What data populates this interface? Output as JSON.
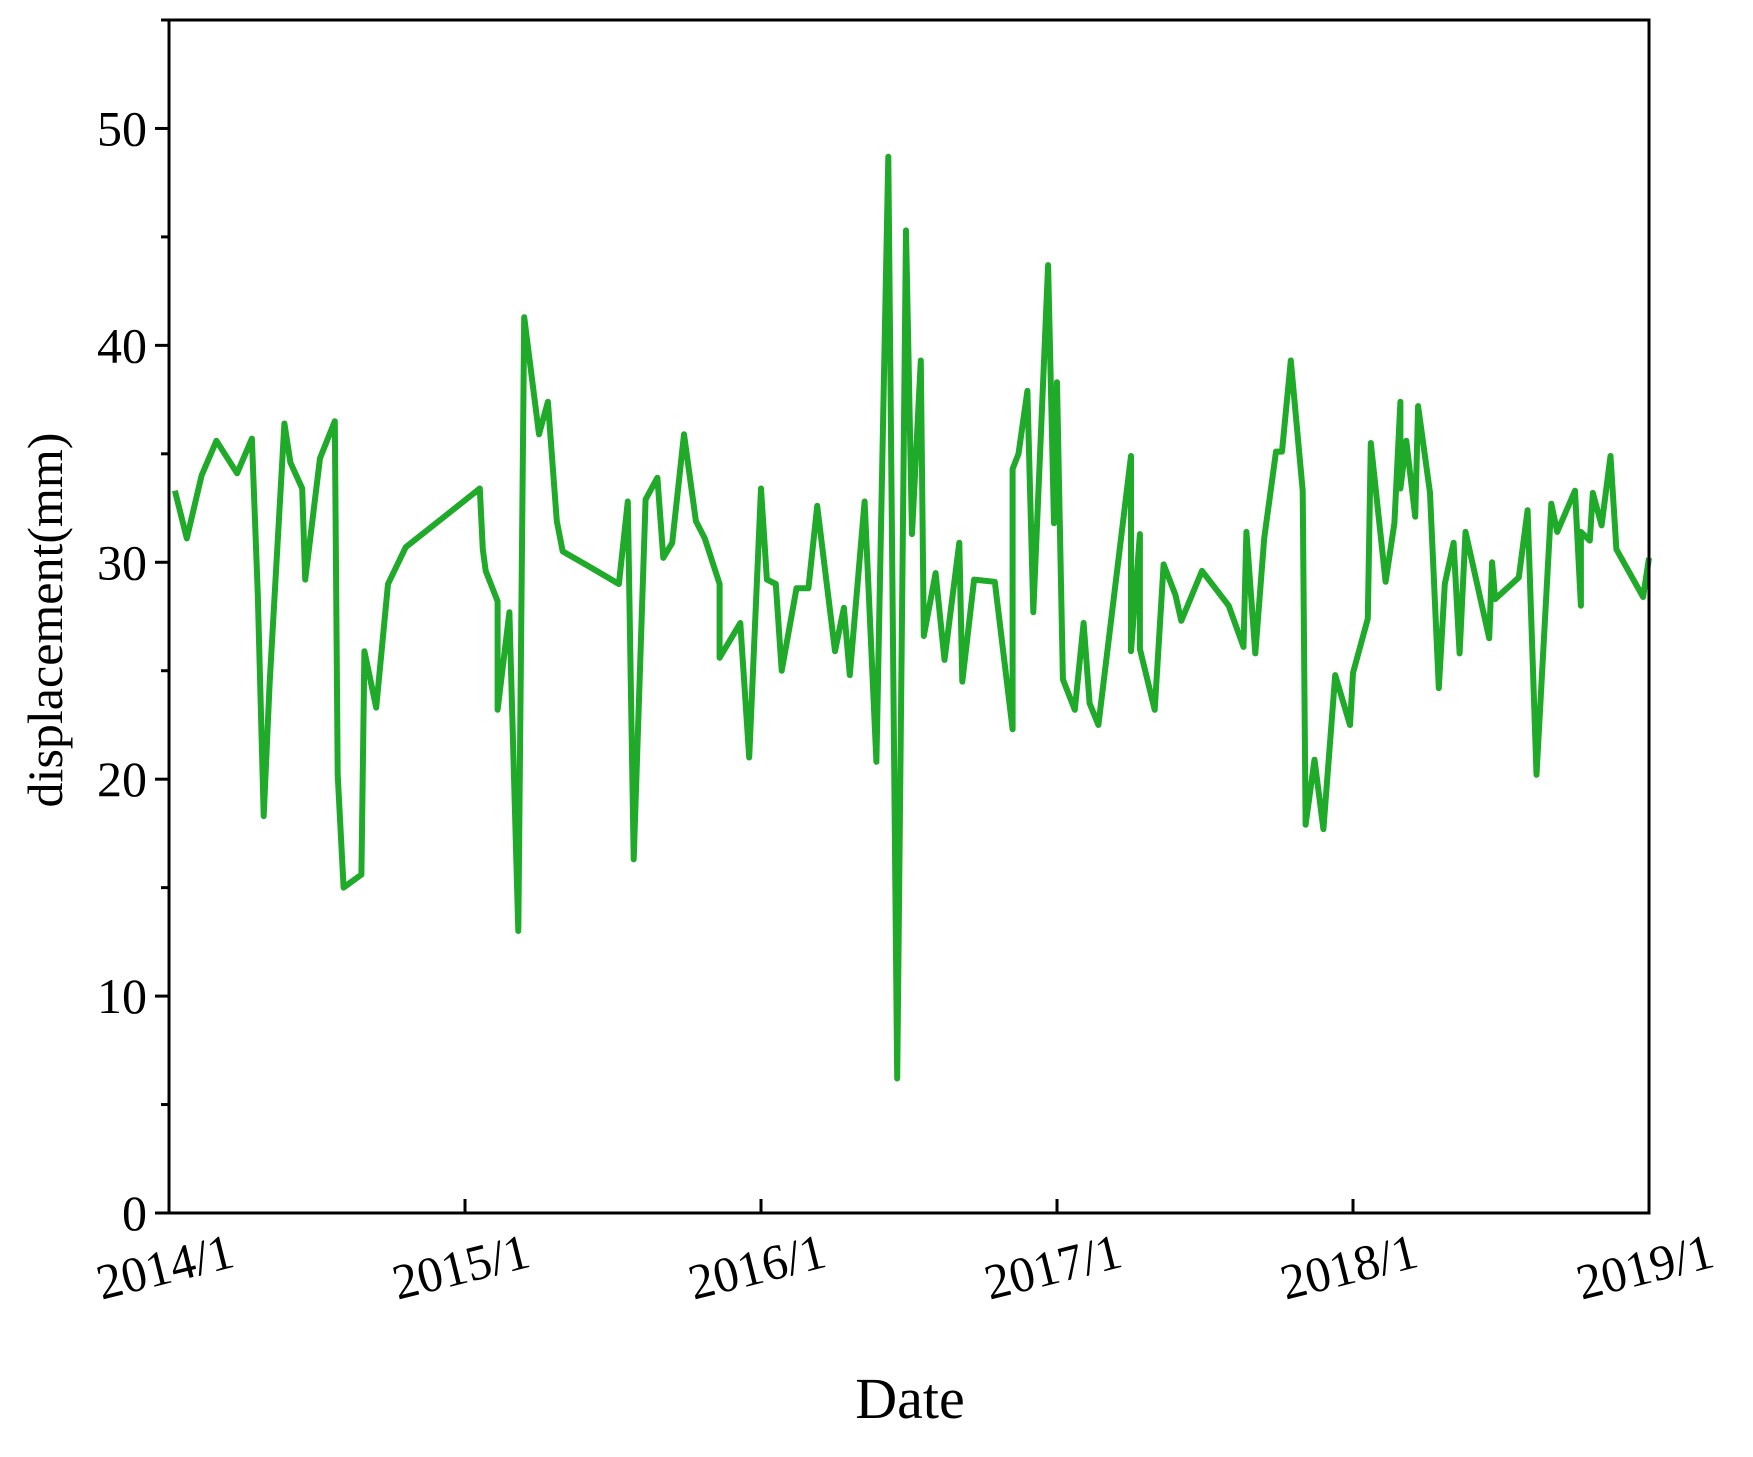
{
  "chart_data": {
    "type": "line",
    "xlabel": "Date",
    "ylabel": "displacement(mm)",
    "xlim": [
      2014,
      2019
    ],
    "xticks": [
      {
        "value": 2014,
        "label": "2014/1"
      },
      {
        "value": 2015,
        "label": "2015/1"
      },
      {
        "value": 2016,
        "label": "2016/1"
      },
      {
        "value": 2017,
        "label": "2017/1"
      },
      {
        "value": 2018,
        "label": "2018/1"
      },
      {
        "value": 2019,
        "label": "2019/1"
      }
    ],
    "ylim": [
      0,
      55
    ],
    "yticks": [
      0,
      10,
      20,
      30,
      40,
      50
    ],
    "yminorticks": [
      5,
      15,
      25,
      35,
      45,
      55
    ],
    "series": [
      {
        "color": "#1faa2a",
        "x": [
          2014.02,
          2014.06,
          2014.11,
          2014.16,
          2014.23,
          2014.28,
          2014.3,
          2014.32,
          2014.34,
          2014.39,
          2014.41,
          2014.45,
          2014.46,
          2014.51,
          2014.56,
          2014.57,
          2014.59,
          2014.65,
          2014.66,
          2014.7,
          2014.74,
          2014.8,
          2014.93,
          2015.05,
          2015.06,
          2015.07,
          2015.11,
          2015.11,
          2015.15,
          2015.18,
          2015.2,
          2015.25,
          2015.28,
          2015.31,
          2015.33,
          2015.42,
          2015.52,
          2015.55,
          2015.57,
          2015.61,
          2015.65,
          2015.67,
          2015.7,
          2015.74,
          2015.78,
          2015.81,
          2015.86,
          2015.86,
          2015.93,
          2015.96,
          2016.0,
          2016.02,
          2016.05,
          2016.07,
          2016.12,
          2016.16,
          2016.19,
          2016.25,
          2016.28,
          2016.3,
          2016.35,
          2016.39,
          2016.43,
          2016.46,
          2016.49,
          2016.51,
          2016.54,
          2016.55,
          2016.59,
          2016.62,
          2016.67,
          2016.68,
          2016.72,
          2016.79,
          2016.85,
          2016.85,
          2016.87,
          2016.9,
          2016.92,
          2016.97,
          2016.99,
          2017.0,
          2017.02,
          2017.06,
          2017.09,
          2017.11,
          2017.14,
          2017.25,
          2017.25,
          2017.28,
          2017.28,
          2017.33,
          2017.36,
          2017.4,
          2017.42,
          2017.49,
          2017.58,
          2017.63,
          2017.64,
          2017.67,
          2017.7,
          2017.74,
          2017.76,
          2017.79,
          2017.83,
          2017.84,
          2017.87,
          2017.9,
          2017.94,
          2017.99,
          2018.0,
          2018.05,
          2018.06,
          2018.11,
          2018.14,
          2018.16,
          2018.16,
          2018.18,
          2018.21,
          2018.22,
          2018.26,
          2018.29,
          2018.31,
          2018.34,
          2018.36,
          2018.38,
          2018.46,
          2018.47,
          2018.48,
          2018.56,
          2018.59,
          2018.62,
          2018.67,
          2018.69,
          2018.75,
          2018.77,
          2018.77,
          2018.8,
          2018.81,
          2018.84,
          2018.87,
          2018.89,
          2018.98,
          2019.0
        ],
        "values": [
          33.3,
          31.1,
          34.0,
          35.6,
          34.1,
          35.7,
          28.5,
          18.3,
          24.4,
          36.4,
          34.6,
          33.4,
          29.2,
          34.8,
          36.5,
          20.2,
          15.0,
          15.6,
          25.9,
          23.3,
          29.0,
          30.7,
          32.1,
          33.4,
          30.6,
          29.6,
          28.2,
          23.2,
          27.7,
          13.0,
          41.3,
          35.9,
          37.4,
          31.9,
          30.5,
          29.8,
          29.0,
          32.8,
          16.3,
          32.9,
          33.9,
          30.2,
          30.9,
          35.9,
          31.9,
          31.1,
          29.0,
          25.6,
          27.2,
          21.0,
          33.4,
          29.2,
          29.0,
          25.0,
          28.8,
          28.8,
          32.6,
          25.9,
          27.9,
          24.8,
          32.8,
          20.8,
          48.7,
          6.2,
          45.3,
          31.3,
          39.3,
          26.6,
          29.5,
          25.5,
          30.9,
          24.5,
          29.2,
          29.1,
          22.3,
          34.3,
          35.0,
          37.9,
          27.7,
          43.7,
          31.8,
          38.3,
          24.6,
          23.2,
          27.2,
          23.5,
          22.5,
          34.9,
          25.9,
          31.3,
          26.0,
          23.2,
          29.9,
          28.5,
          27.3,
          29.6,
          28.0,
          26.1,
          31.4,
          25.8,
          31.1,
          35.1,
          35.1,
          39.3,
          33.3,
          17.9,
          20.9,
          17.7,
          24.8,
          22.5,
          24.9,
          27.4,
          35.5,
          29.1,
          31.8,
          37.4,
          33.4,
          35.6,
          32.1,
          37.2,
          33.2,
          24.2,
          29.0,
          30.9,
          25.8,
          31.4,
          26.5,
          30.0,
          28.3,
          29.3,
          32.4,
          20.2,
          32.7,
          31.4,
          33.3,
          28.0,
          31.4,
          31.0,
          33.2,
          31.7,
          34.9,
          30.6,
          28.4,
          30.2
        ]
      }
    ]
  }
}
